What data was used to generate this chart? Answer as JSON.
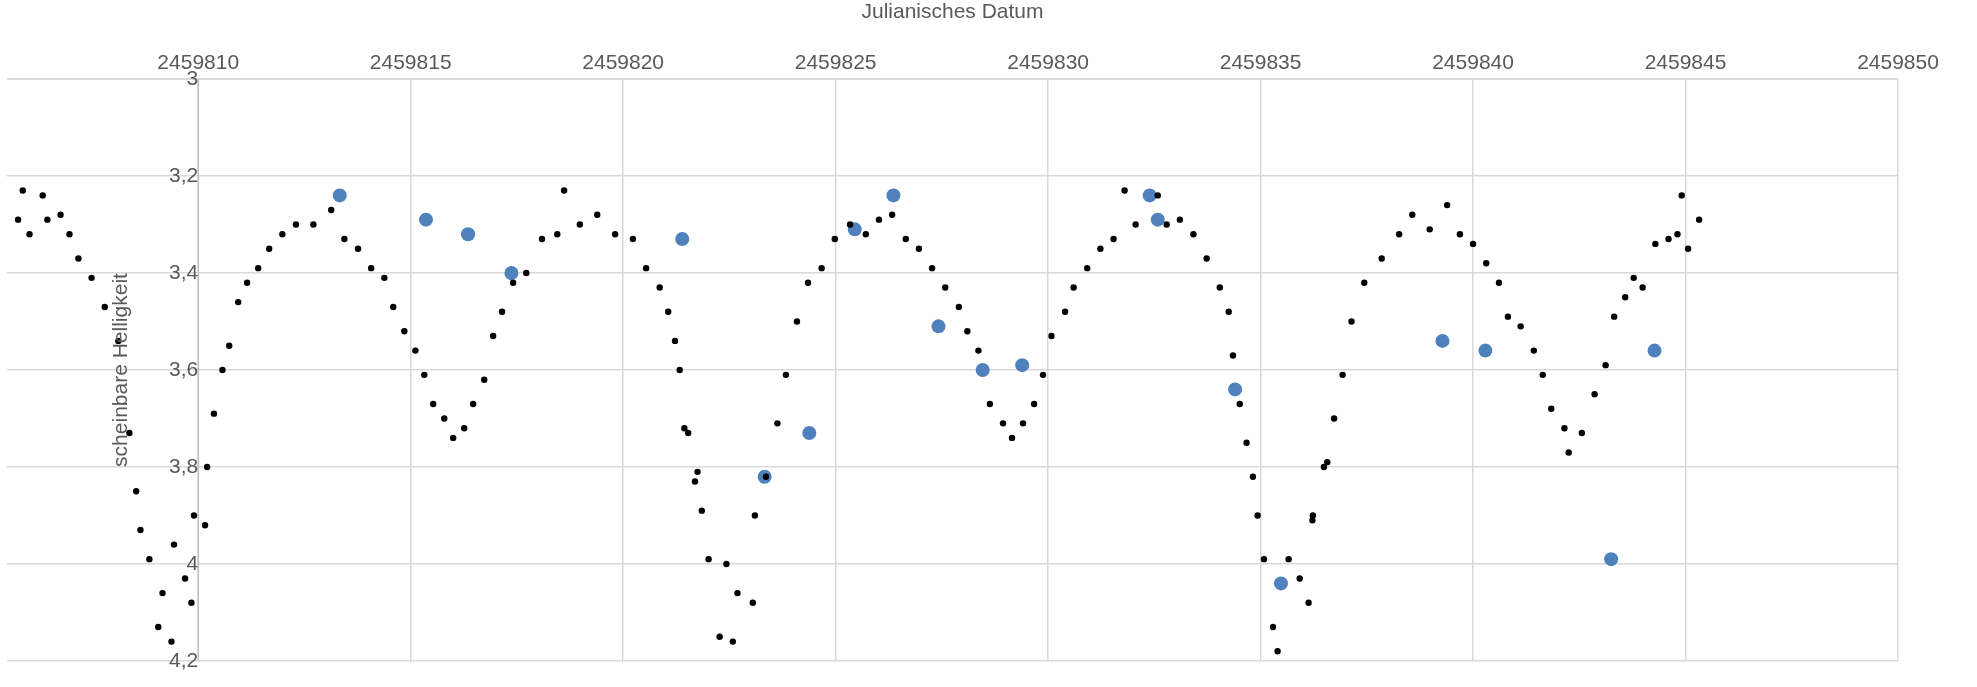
{
  "chart_data": {
    "type": "scatter",
    "xlabel": "Julianisches Datum",
    "ylabel": "scheinbare Helligkeit",
    "xlim": [
      2459805.5,
      2459850
    ],
    "xticks": [
      2459810,
      2459815,
      2459820,
      2459825,
      2459830,
      2459835,
      2459840,
      2459845,
      2459850
    ],
    "ylim": [
      4.2,
      3
    ],
    "yticks": [
      3,
      {
        "value": 3.2,
        "label": "3,2"
      },
      {
        "value": 3.4,
        "label": "3,4"
      },
      {
        "value": 3.6,
        "label": "3,6"
      },
      {
        "value": 3.8,
        "label": "3,8"
      },
      4,
      {
        "value": 4.2,
        "label": "4,2"
      }
    ],
    "grid": true,
    "legend": false,
    "marker": "circle",
    "series": [
      {
        "color": "#000000",
        "x": [
          2459805.76,
          2459805.87,
          2459806.03,
          2459806.34,
          2459806.45,
          2459806.76,
          2459806.97,
          2459807.18,
          2459807.49,
          2459807.8,
          2459808.12,
          2459808.38,
          2459808.54,
          2459808.64,
          2459808.85,
          2459809.06,
          2459809.16,
          2459809.37,
          2459809.43,
          2459809.69,
          2459809.84,
          2459809.9,
          2459810.16,
          2459810.21,
          2459810.37,
          2459810.57,
          2459810.73,
          2459810.94,
          2459811.15,
          2459811.41,
          2459811.67,
          2459811.98,
          2459812.3,
          2459812.71,
          2459813.13,
          2459813.44,
          2459813.76,
          2459814.07,
          2459814.38,
          2459814.59,
          2459814.85,
          2459815.11,
          2459815.32,
          2459815.53,
          2459815.79,
          2459816,
          2459816.26,
          2459816.47,
          2459816.73,
          2459816.94,
          2459817.15,
          2459817.41,
          2459817.72,
          2459818.09,
          2459818.45,
          2459818.61,
          2459818.98,
          2459819.39,
          2459819.81,
          2459820.23,
          2459820.54,
          2459820.86,
          2459821.06,
          2459821.22,
          2459821.33,
          2459821.44,
          2459821.53,
          2459821.69,
          2459821.75,
          2459821.85,
          2459822.01,
          2459822.27,
          2459822.43,
          2459822.58,
          2459822.69,
          2459823.05,
          2459823.1,
          2459823.36,
          2459823.63,
          2459823.83,
          2459824.09,
          2459824.35,
          2459824.67,
          2459824.98,
          2459825.34,
          2459825.71,
          2459826.02,
          2459826.33,
          2459826.65,
          2459826.96,
          2459827.27,
          2459827.58,
          2459827.9,
          2459828.1,
          2459828.36,
          2459828.63,
          2459828.94,
          2459829.15,
          2459829.41,
          2459829.67,
          2459829.88,
          2459830.08,
          2459830.4,
          2459830.6,
          2459830.92,
          2459831.23,
          2459831.54,
          2459831.8,
          2459832.06,
          2459832.58,
          2459832.79,
          2459833.1,
          2459833.42,
          2459833.73,
          2459834.04,
          2459834.25,
          2459834.35,
          2459834.51,
          2459834.67,
          2459834.82,
          2459834.93,
          2459835.08,
          2459835.29,
          2459835.4,
          2459835.66,
          2459835.92,
          2459836.13,
          2459836.22,
          2459836.23,
          2459836.49,
          2459836.57,
          2459836.73,
          2459836.93,
          2459837.14,
          2459837.44,
          2459837.85,
          2459838.26,
          2459838.57,
          2459838.98,
          2459839.39,
          2459839.69,
          2459840,
          2459840.31,
          2459840.61,
          2459840.82,
          2459841.12,
          2459841.43,
          2459841.64,
          2459841.84,
          2459842.15,
          2459842.25,
          2459842.56,
          2459842.86,
          2459843.12,
          2459843.32,
          2459843.58,
          2459843.78,
          2459843.99,
          2459844.29,
          2459844.6,
          2459844.81,
          2459844.91,
          2459845.06,
          2459845.32
        ],
        "values": [
          3.29,
          3.23,
          3.32,
          3.24,
          3.29,
          3.28,
          3.32,
          3.37,
          3.41,
          3.47,
          3.54,
          3.73,
          3.85,
          3.93,
          3.99,
          4.13,
          4.06,
          4.16,
          3.96,
          4.03,
          4.08,
          3.9,
          3.92,
          3.8,
          3.69,
          3.6,
          3.55,
          3.46,
          3.42,
          3.39,
          3.35,
          3.32,
          3.3,
          3.3,
          3.27,
          3.33,
          3.35,
          3.39,
          3.41,
          3.47,
          3.52,
          3.56,
          3.61,
          3.67,
          3.7,
          3.74,
          3.72,
          3.67,
          3.62,
          3.53,
          3.48,
          3.42,
          3.4,
          3.33,
          3.32,
          3.23,
          3.3,
          3.28,
          3.32,
          3.33,
          3.39,
          3.43,
          3.48,
          3.54,
          3.6,
          3.72,
          3.73,
          3.83,
          3.81,
          3.89,
          3.99,
          4.15,
          4,
          4.16,
          4.06,
          4.08,
          3.9,
          3.82,
          3.71,
          3.61,
          3.5,
          3.42,
          3.39,
          3.33,
          3.3,
          3.32,
          3.29,
          3.28,
          3.33,
          3.35,
          3.39,
          3.43,
          3.47,
          3.52,
          3.56,
          3.67,
          3.71,
          3.74,
          3.71,
          3.67,
          3.61,
          3.53,
          3.48,
          3.43,
          3.39,
          3.35,
          3.33,
          3.23,
          3.3,
          3.24,
          3.3,
          3.29,
          3.32,
          3.37,
          3.43,
          3.48,
          3.57,
          3.67,
          3.75,
          3.82,
          3.9,
          3.99,
          4.13,
          4.18,
          3.99,
          4.03,
          4.08,
          3.91,
          3.9,
          3.8,
          3.79,
          3.7,
          3.61,
          3.5,
          3.42,
          3.37,
          3.32,
          3.28,
          3.31,
          3.26,
          3.32,
          3.34,
          3.38,
          3.42,
          3.49,
          3.51,
          3.56,
          3.61,
          3.68,
          3.72,
          3.77,
          3.73,
          3.65,
          3.59,
          3.49,
          3.45,
          3.41,
          3.43,
          3.34,
          3.33,
          3.32,
          3.24,
          3.35,
          3.29
        ]
      },
      {
        "color": "#4f81bd",
        "x": [
          2459813.33,
          2459815.36,
          2459816.35,
          2459817.37,
          2459821.39,
          2459823.33,
          2459824.38,
          2459825.45,
          2459826.36,
          2459827.42,
          2459828.46,
          2459829.39,
          2459832.39,
          2459832.58,
          2459834.4,
          2459835.48,
          2459839.28,
          2459840.29,
          2459843.25,
          2459844.27
        ],
        "values": [
          3.24,
          3.29,
          3.32,
          3.4,
          3.33,
          3.82,
          3.73,
          3.31,
          3.24,
          3.51,
          3.6,
          3.59,
          3.24,
          3.29,
          3.64,
          4.04,
          3.54,
          3.56,
          3.99,
          3.56
        ]
      }
    ]
  }
}
